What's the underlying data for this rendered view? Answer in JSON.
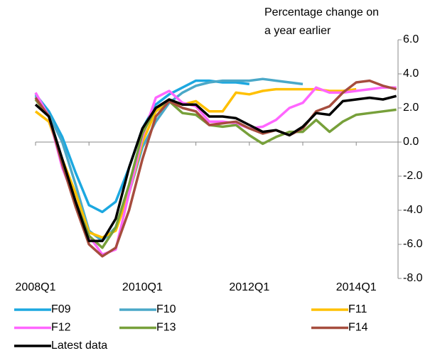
{
  "chart_data": {
    "type": "line",
    "ylabel": [
      "Percentage change on",
      "a year earlier"
    ],
    "categories": [
      "2008Q1",
      null,
      null,
      null,
      null,
      null,
      null,
      null,
      "2010Q1",
      null,
      null,
      null,
      null,
      null,
      null,
      null,
      "2012Q1",
      null,
      null,
      null,
      null,
      null,
      null,
      null,
      "2014Q1",
      null,
      null,
      null
    ],
    "ylim": [
      -8,
      6
    ],
    "yticks": [
      {
        "value": 6,
        "label": "6.0"
      },
      {
        "value": 4,
        "label": "4.0"
      },
      {
        "value": 2,
        "label": "2.0"
      },
      {
        "value": 0,
        "label": "0.0"
      },
      {
        "value": -2,
        "label": "-2.0"
      },
      {
        "value": -4,
        "label": "-4.0"
      },
      {
        "value": -6,
        "label": "-6.0"
      },
      {
        "value": -8,
        "label": "-8.0"
      }
    ],
    "series": [
      {
        "name": "F09",
        "color": "#1ca8e0",
        "values": [
          2.8,
          1.8,
          0.3,
          -1.8,
          -3.7,
          -4.1,
          -3.5,
          -1.5,
          0.8,
          2.2,
          2.8,
          3.2,
          3.6,
          3.6,
          3.5,
          3.5,
          3.4,
          null,
          null,
          null,
          null,
          null,
          null,
          null,
          null,
          null,
          null,
          null
        ]
      },
      {
        "name": "F10",
        "color": "#4aa8c8",
        "values": [
          2.7,
          1.6,
          0.0,
          -2.5,
          -5.2,
          -5.8,
          -5.0,
          -3.0,
          -0.3,
          1.2,
          2.3,
          2.9,
          3.3,
          3.5,
          3.6,
          3.6,
          3.6,
          3.7,
          3.6,
          3.5,
          3.4,
          null,
          null,
          null,
          null,
          null,
          null,
          null
        ]
      },
      {
        "name": "F11",
        "color": "#ffc000",
        "values": [
          1.8,
          1.2,
          -1.0,
          -3.0,
          -5.3,
          -5.6,
          -5.2,
          -3.0,
          0.0,
          1.8,
          2.4,
          2.2,
          2.4,
          1.8,
          1.8,
          2.9,
          2.8,
          3.0,
          3.1,
          3.1,
          3.1,
          3.1,
          3.0,
          3.0,
          3.1,
          null,
          null,
          null
        ]
      },
      {
        "name": "F12",
        "color": "#ff66ff",
        "values": [
          2.9,
          1.5,
          -1.5,
          -3.5,
          -5.5,
          -6.6,
          -6.3,
          -3.0,
          0.3,
          2.6,
          3.0,
          2.3,
          2.1,
          1.2,
          1.2,
          1.1,
          0.8,
          0.9,
          1.3,
          2.0,
          2.3,
          3.2,
          2.9,
          2.9,
          3.0,
          3.1,
          3.2,
          3.2
        ]
      },
      {
        "name": "F13",
        "color": "#77a03a",
        "values": [
          2.5,
          1.5,
          -1.2,
          -3.5,
          -5.5,
          -6.2,
          -5.0,
          -2.5,
          0.5,
          2.0,
          2.4,
          1.7,
          1.6,
          1.0,
          0.9,
          1.0,
          0.4,
          -0.1,
          0.3,
          0.6,
          0.6,
          1.3,
          0.6,
          1.2,
          1.6,
          1.7,
          1.8,
          1.9
        ]
      },
      {
        "name": "F14",
        "color": "#a64d3e",
        "values": [
          2.6,
          1.5,
          -1.3,
          -3.8,
          -6.0,
          -6.7,
          -6.2,
          -4.0,
          -1.0,
          1.5,
          2.4,
          2.0,
          1.8,
          1.0,
          1.1,
          1.2,
          0.8,
          0.5,
          0.7,
          0.4,
          0.8,
          1.8,
          2.1,
          2.9,
          3.5,
          3.6,
          3.3,
          3.1
        ]
      },
      {
        "name": "Latest data",
        "color": "#000000",
        "values": [
          2.2,
          1.5,
          -1.0,
          -3.5,
          -5.8,
          -5.8,
          -4.5,
          -1.5,
          0.8,
          2.0,
          2.5,
          2.2,
          2.2,
          1.5,
          1.5,
          1.4,
          1.0,
          0.6,
          0.7,
          0.4,
          0.9,
          1.7,
          1.6,
          2.4,
          2.5,
          2.6,
          2.5,
          2.7
        ]
      }
    ]
  }
}
